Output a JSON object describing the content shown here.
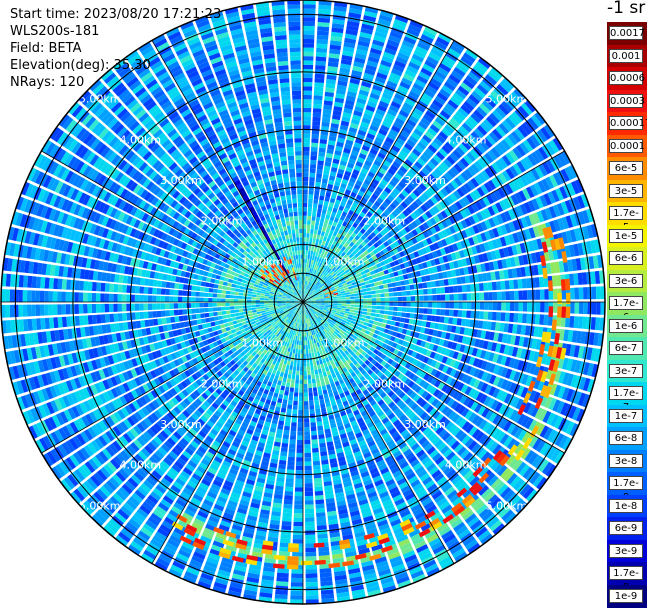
{
  "info": {
    "start_time": "Start time: 2023/08/20 17:21:23",
    "instrument": "WLS200s-181",
    "field": "Field: BETA",
    "elevation": "Elevation(deg): 35.30",
    "nrays": "NRays: 120"
  },
  "colorbar": {
    "unit": "-1 sr",
    "labels": [
      "0.0017",
      "0.001",
      "0.0006",
      "0.0003",
      "0.00017",
      "0.0001",
      "6e-5",
      "3e-5",
      "1.7e-5",
      "1e-5",
      "6e-6",
      "3e-6",
      "1.7e-6",
      "1e-6",
      "6e-7",
      "3e-7",
      "1.7e-7",
      "1e-7",
      "6e-8",
      "3e-8",
      "1.7e-8",
      "1e-8",
      "6e-9",
      "3e-9",
      "1.7e-9",
      "1e-9"
    ],
    "colors": [
      "#7a0000",
      "#a80000",
      "#d40000",
      "#f01010",
      "#ff2a00",
      "#ff5a00",
      "#ff8c00",
      "#ffb400",
      "#ffdc00",
      "#f4f400",
      "#d8f020",
      "#b4ec40",
      "#90e860",
      "#70e890",
      "#50e8b0",
      "#30e8d0",
      "#00d8f0",
      "#00c0ff",
      "#00a0ff",
      "#0080ff",
      "#0060ff",
      "#0040ff",
      "#0020f0",
      "#0000d8",
      "#0000b0",
      "#000080"
    ]
  },
  "chart_data": {
    "type": "polar_ppi",
    "field": "BETA",
    "elevation_deg": 35.3,
    "n_rays": 120,
    "range_rings_km": [
      1,
      2,
      3,
      4,
      5
    ],
    "ring_labels": [
      "1.00km",
      "2.00km",
      "3.00km",
      "4.00km",
      "5.00km"
    ],
    "radial_lines_deg": [
      0,
      30,
      60,
      90,
      120,
      150,
      180,
      210,
      240,
      270,
      300,
      330
    ],
    "max_range_km": 5.25,
    "scale": "log",
    "value_range": [
      1e-09,
      0.0017
    ],
    "features": [
      {
        "name": "near-range aerosol",
        "range_km": [
          0,
          1.5
        ],
        "level": "1e-7 to 6e-7"
      },
      {
        "name": "cloud patch NW",
        "azimuth_deg": [
          300,
          345
        ],
        "range_km": [
          0.4,
          0.9
        ],
        "level": "3e-5 to 0.0003"
      },
      {
        "name": "cloud patch NE",
        "azimuth_deg": [
          60,
          80
        ],
        "range_km": [
          0.4,
          0.6
        ],
        "level": "3e-5 to 6e-5"
      },
      {
        "name": "enhanced arc",
        "azimuth_deg": [
          70,
          210
        ],
        "range_km": [
          4.2,
          4.6
        ],
        "level": "6e-7 to 1.7e-6"
      },
      {
        "name": "clear air background",
        "range_km": [
          1.5,
          5.25
        ],
        "level": "3e-8 to 6e-8"
      }
    ]
  }
}
